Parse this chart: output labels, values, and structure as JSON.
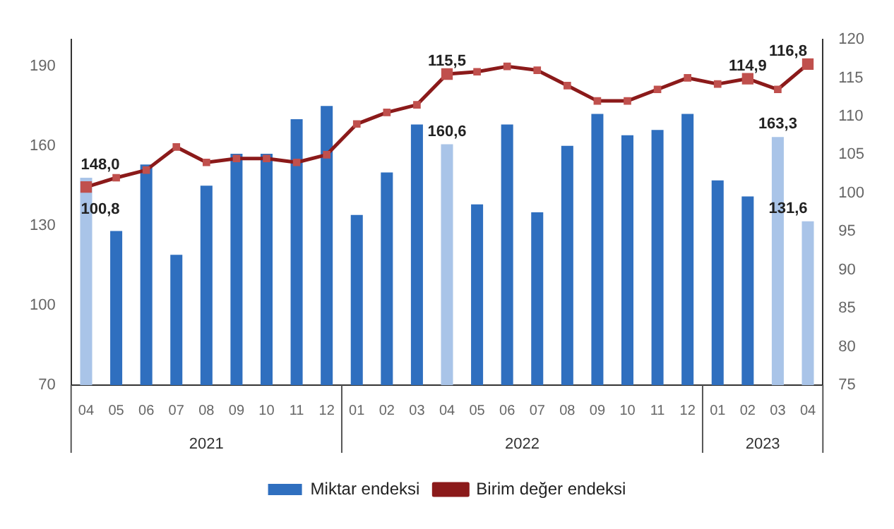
{
  "chart_data": {
    "type": "bar",
    "categories": [
      "04",
      "05",
      "06",
      "07",
      "08",
      "09",
      "10",
      "11",
      "12",
      "01",
      "02",
      "03",
      "04",
      "05",
      "06",
      "07",
      "08",
      "09",
      "10",
      "11",
      "12",
      "01",
      "02",
      "03",
      "04"
    ],
    "series": [
      {
        "name": "Miktar endeksi",
        "colors": [
          "#a9c4e8",
          "#2f6fbf",
          "#2f6fbf",
          "#2f6fbf",
          "#2f6fbf",
          "#2f6fbf",
          "#2f6fbf",
          "#2f6fbf",
          "#2f6fbf",
          "#2f6fbf",
          "#2f6fbf",
          "#2f6fbf",
          "#a9c4e8",
          "#2f6fbf",
          "#2f6fbf",
          "#2f6fbf",
          "#2f6fbf",
          "#2f6fbf",
          "#2f6fbf",
          "#2f6fbf",
          "#2f6fbf",
          "#2f6fbf",
          "#2f6fbf",
          "#a9c4e8",
          "#a9c4e8"
        ],
        "color": "#2f6fbf",
        "values": [
          148.0,
          128,
          153,
          119,
          145,
          157,
          157,
          170,
          175,
          134,
          150,
          168,
          160.6,
          138,
          168,
          135,
          160,
          172,
          164,
          166,
          172,
          147,
          141,
          163.3,
          131.6
        ],
        "value_labels": [
          "148,0",
          null,
          null,
          null,
          null,
          null,
          null,
          null,
          null,
          null,
          null,
          null,
          "160,6",
          null,
          null,
          null,
          null,
          null,
          null,
          null,
          null,
          null,
          null,
          "163,3",
          "131,6"
        ]
      },
      {
        "name": "Birim değer endeksi",
        "type": "line",
        "axis": "y2",
        "color": "#8b1a1a",
        "values": [
          100.8,
          102,
          103,
          106,
          104,
          104.5,
          104.5,
          104,
          105,
          109,
          110.5,
          111.5,
          115.5,
          115.8,
          116.5,
          116,
          114,
          112,
          112,
          113.5,
          115,
          114.2,
          114.9,
          113.5,
          116.8
        ],
        "value_labels": [
          "100,8",
          null,
          null,
          null,
          null,
          null,
          null,
          null,
          null,
          null,
          null,
          null,
          "115,5",
          null,
          null,
          null,
          null,
          null,
          null,
          null,
          null,
          null,
          "114,9",
          null,
          "116,8"
        ]
      }
    ],
    "ylim": [
      70,
      200
    ],
    "yticks": [
      70,
      100,
      130,
      160,
      190
    ],
    "y2lim": [
      75,
      120
    ],
    "y2ticks": [
      75,
      80,
      85,
      90,
      95,
      100,
      105,
      110,
      115,
      120
    ],
    "grid": false,
    "legend": "bottom",
    "marker": "square",
    "line_style": "solid",
    "annotations": [
      "2021",
      "2022",
      "2023"
    ]
  }
}
